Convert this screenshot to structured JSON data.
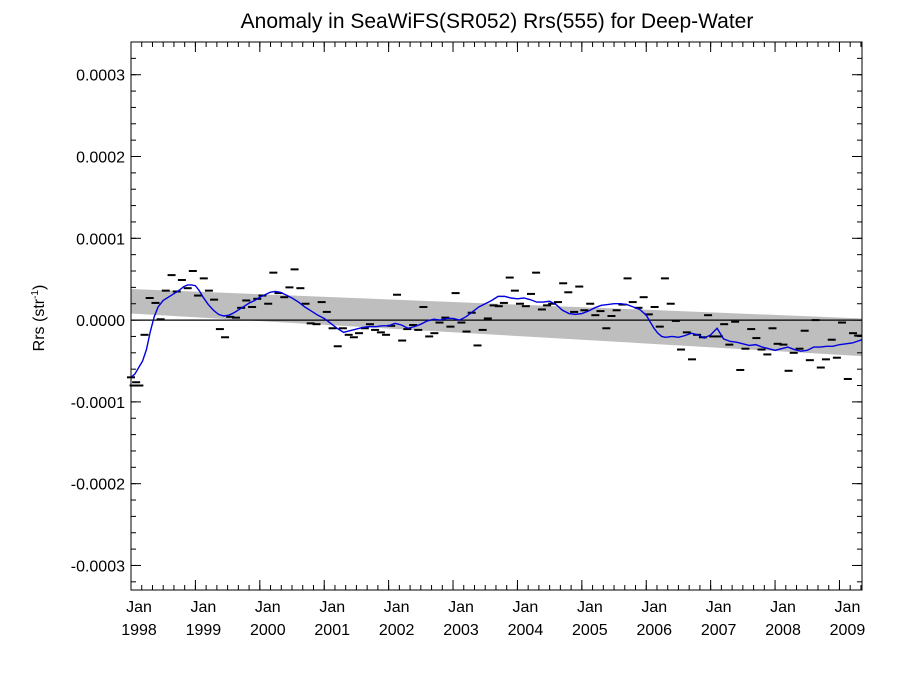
{
  "chart_data": {
    "type": "line",
    "title": "Anomaly in SeaWiFS(SR052) Rrs(555) for Deep-Water",
    "ylabel_main": "Rrs (str",
    "ylabel_sup": "-1",
    "ylabel_end": ")",
    "xlim": [
      1998.0,
      2009.35
    ],
    "ylim": [
      -0.00033,
      0.00034
    ],
    "yticks": [
      {
        "value": 0.0003,
        "label": "0.0003"
      },
      {
        "value": 0.0002,
        "label": "0.0002"
      },
      {
        "value": 0.0001,
        "label": "0.0001"
      },
      {
        "value": 0.0,
        "label": "0.0000"
      },
      {
        "value": -0.0001,
        "label": "-0.0001"
      },
      {
        "value": -0.0002,
        "label": "-0.0002"
      },
      {
        "value": -0.0003,
        "label": "-0.0003"
      }
    ],
    "xticks": [
      {
        "value": 1998,
        "month": "Jan",
        "year": "1998"
      },
      {
        "value": 1999,
        "month": "Jan",
        "year": "1999"
      },
      {
        "value": 2000,
        "month": "Jan",
        "year": "2000"
      },
      {
        "value": 2001,
        "month": "Jan",
        "year": "2001"
      },
      {
        "value": 2002,
        "month": "Jan",
        "year": "2002"
      },
      {
        "value": 2003,
        "month": "Jan",
        "year": "2003"
      },
      {
        "value": 2004,
        "month": "Jan",
        "year": "2004"
      },
      {
        "value": 2005,
        "month": "Jan",
        "year": "2005"
      },
      {
        "value": 2006,
        "month": "Jan",
        "year": "2006"
      },
      {
        "value": 2007,
        "month": "Jan",
        "year": "2007"
      },
      {
        "value": 2008,
        "month": "Jan",
        "year": "2008"
      },
      {
        "value": 2009,
        "month": "Jan",
        "year": "2009"
      }
    ],
    "zero_line": 0.0,
    "trend_band": {
      "x": [
        1998.0,
        2009.35
      ],
      "upper": [
        3.8e-05,
        2e-06
      ],
      "lower": [
        8e-06,
        -4.4e-05
      ]
    },
    "monthly_points": [
      [
        1998.0,
        -7e-05
      ],
      [
        1998.04,
        -8e-05
      ],
      [
        1998.08,
        -7.6e-05
      ],
      [
        1998.13,
        -8e-05
      ],
      [
        1998.21,
        -1.8e-05
      ],
      [
        1998.29,
        2.7e-05
      ],
      [
        1998.38,
        2.1e-05
      ],
      [
        1998.46,
        1e-06
      ],
      [
        1998.54,
        3.6e-05
      ],
      [
        1998.63,
        5.5e-05
      ],
      [
        1998.71,
        3.5e-05
      ],
      [
        1998.79,
        4.9e-05
      ],
      [
        1998.88,
        3.9e-05
      ],
      [
        1998.96,
        6e-05
      ],
      [
        1999.04,
        3e-05
      ],
      [
        1999.13,
        5.1e-05
      ],
      [
        1999.21,
        3.6e-05
      ],
      [
        1999.29,
        2.5e-05
      ],
      [
        1999.38,
        -1.1e-05
      ],
      [
        1999.46,
        -2.1e-05
      ],
      [
        1999.54,
        4e-06
      ],
      [
        1999.63,
        3e-06
      ],
      [
        1999.71,
        1.5e-05
      ],
      [
        1999.79,
        2.4e-05
      ],
      [
        1999.88,
        1.6e-05
      ],
      [
        1999.96,
        2.6e-05
      ],
      [
        2000.04,
        3e-05
      ],
      [
        2000.13,
        2e-05
      ],
      [
        2000.21,
        5.8e-05
      ],
      [
        2000.29,
        3.3e-05
      ],
      [
        2000.38,
        2.8e-05
      ],
      [
        2000.46,
        4e-05
      ],
      [
        2000.54,
        6.2e-05
      ],
      [
        2000.63,
        3.9e-05
      ],
      [
        2000.71,
        2e-05
      ],
      [
        2000.79,
        -4e-06
      ],
      [
        2000.88,
        -5e-06
      ],
      [
        2000.96,
        2.2e-05
      ],
      [
        2001.04,
        1e-05
      ],
      [
        2001.13,
        -1e-05
      ],
      [
        2001.21,
        -3.2e-05
      ],
      [
        2001.29,
        -1e-05
      ],
      [
        2001.38,
        -1.8e-05
      ],
      [
        2001.46,
        -2.1e-05
      ],
      [
        2001.54,
        -1.6e-05
      ],
      [
        2001.63,
        -1e-05
      ],
      [
        2001.71,
        -5e-06
      ],
      [
        2001.79,
        -1.2e-05
      ],
      [
        2001.88,
        -1.5e-05
      ],
      [
        2001.96,
        -1.8e-05
      ],
      [
        2002.04,
        -7e-06
      ],
      [
        2002.13,
        3.1e-05
      ],
      [
        2002.21,
        -2.5e-05
      ],
      [
        2002.29,
        -1.1e-05
      ],
      [
        2002.38,
        -6e-06
      ],
      [
        2002.46,
        -1.2e-05
      ],
      [
        2002.54,
        1.6e-05
      ],
      [
        2002.63,
        -2e-05
      ],
      [
        2002.71,
        -1.6e-05
      ],
      [
        2002.79,
        -3e-06
      ],
      [
        2002.88,
        3e-06
      ],
      [
        2002.96,
        -8e-06
      ],
      [
        2003.04,
        3.3e-05
      ],
      [
        2003.13,
        -3e-06
      ],
      [
        2003.21,
        -1.4e-05
      ],
      [
        2003.29,
        9e-06
      ],
      [
        2003.38,
        -3.1e-05
      ],
      [
        2003.46,
        -1.2e-05
      ],
      [
        2003.54,
        2e-06
      ],
      [
        2003.63,
        1.8e-05
      ],
      [
        2003.71,
        1.7e-05
      ],
      [
        2003.79,
        2.1e-05
      ],
      [
        2003.88,
        5.2e-05
      ],
      [
        2003.96,
        3.6e-05
      ],
      [
        2004.04,
        2e-05
      ],
      [
        2004.13,
        1.7e-05
      ],
      [
        2004.21,
        3.2e-05
      ],
      [
        2004.29,
        5.8e-05
      ],
      [
        2004.38,
        1.3e-05
      ],
      [
        2004.46,
        1.8e-05
      ],
      [
        2004.54,
        2e-05
      ],
      [
        2004.63,
        2.2e-05
      ],
      [
        2004.71,
        4.5e-05
      ],
      [
        2004.79,
        3.4e-05
      ],
      [
        2004.88,
        1e-05
      ],
      [
        2004.96,
        4.1e-05
      ],
      [
        2005.04,
        1.2e-05
      ],
      [
        2005.13,
        2e-05
      ],
      [
        2005.21,
        6e-06
      ],
      [
        2005.29,
        1.1e-05
      ],
      [
        2005.38,
        -1e-05
      ],
      [
        2005.46,
        5e-06
      ],
      [
        2005.54,
        1.2e-05
      ],
      [
        2005.63,
        1.9e-05
      ],
      [
        2005.71,
        5.1e-05
      ],
      [
        2005.79,
        2.2e-05
      ],
      [
        2005.88,
        1.5e-05
      ],
      [
        2005.96,
        2.8e-05
      ],
      [
        2006.04,
        7e-06
      ],
      [
        2006.13,
        1.6e-05
      ],
      [
        2006.21,
        -8e-06
      ],
      [
        2006.29,
        5.1e-05
      ],
      [
        2006.38,
        2e-05
      ],
      [
        2006.46,
        -1e-06
      ],
      [
        2006.54,
        -3.6e-05
      ],
      [
        2006.63,
        -1.5e-05
      ],
      [
        2006.71,
        -4.8e-05
      ],
      [
        2006.79,
        -1.8e-05
      ],
      [
        2006.88,
        -2.1e-05
      ],
      [
        2006.96,
        6e-06
      ],
      [
        2007.04,
        -2e-05
      ],
      [
        2007.13,
        -2e-05
      ],
      [
        2007.21,
        -5e-06
      ],
      [
        2007.29,
        -3e-05
      ],
      [
        2007.38,
        -2e-06
      ],
      [
        2007.46,
        -6.1e-05
      ],
      [
        2007.54,
        -3.5e-05
      ],
      [
        2007.63,
        -1.1e-05
      ],
      [
        2007.71,
        -2.2e-05
      ],
      [
        2007.79,
        -3.6e-05
      ],
      [
        2007.88,
        -4.2e-05
      ],
      [
        2007.96,
        -1e-05
      ],
      [
        2008.04,
        -2.9e-05
      ],
      [
        2008.13,
        -3e-05
      ],
      [
        2008.21,
        -6.2e-05
      ],
      [
        2008.29,
        -4e-05
      ],
      [
        2008.38,
        -3.5e-05
      ],
      [
        2008.46,
        -1.3e-05
      ],
      [
        2008.54,
        -4.9e-05
      ],
      [
        2008.63,
        0.0
      ],
      [
        2008.71,
        -5.8e-05
      ],
      [
        2008.79,
        -4.8e-05
      ],
      [
        2008.88,
        -2.4e-05
      ],
      [
        2008.96,
        -4.6e-05
      ],
      [
        2009.04,
        -3e-06
      ],
      [
        2009.13,
        -7.2e-05
      ],
      [
        2009.21,
        -1.6e-05
      ],
      [
        2009.29,
        -1.9e-05
      ]
    ],
    "running_mean": {
      "x": [
        1998.0,
        1998.06,
        1998.12,
        1998.18,
        1998.24,
        1998.3,
        1998.36,
        1998.42,
        1998.5,
        1998.58,
        1998.66,
        1998.74,
        1998.82,
        1998.88,
        1998.94,
        1999.0,
        1999.06,
        1999.12,
        1999.2,
        1999.28,
        1999.36,
        1999.44,
        1999.52,
        1999.6,
        1999.68,
        1999.76,
        1999.84,
        1999.92,
        2000.0,
        2000.08,
        2000.16,
        2000.24,
        2000.32,
        2000.4,
        2000.5,
        2000.6,
        2000.7,
        2000.8,
        2000.9,
        2001.0,
        2001.1,
        2001.2,
        2001.3,
        2001.4,
        2001.5,
        2001.6,
        2001.7,
        2001.8,
        2001.9,
        2002.0,
        2002.1,
        2002.2,
        2002.3,
        2002.4,
        2002.5,
        2002.6,
        2002.7,
        2002.8,
        2002.9,
        2003.0,
        2003.1,
        2003.2,
        2003.3,
        2003.4,
        2003.5,
        2003.6,
        2003.7,
        2003.8,
        2003.9,
        2004.0,
        2004.1,
        2004.2,
        2004.3,
        2004.4,
        2004.5,
        2004.6,
        2004.7,
        2004.8,
        2004.9,
        2005.0,
        2005.1,
        2005.2,
        2005.3,
        2005.4,
        2005.5,
        2005.6,
        2005.7,
        2005.8,
        2005.9,
        2006.0,
        2006.06,
        2006.12,
        2006.18,
        2006.24,
        2006.3,
        2006.4,
        2006.5,
        2006.6,
        2006.7,
        2006.8,
        2006.9,
        2007.0,
        2007.1,
        2007.2,
        2007.3,
        2007.4,
        2007.5,
        2007.6,
        2007.7,
        2007.8,
        2007.9,
        2008.0,
        2008.1,
        2008.2,
        2008.3,
        2008.4,
        2008.5,
        2008.6,
        2008.7,
        2008.8,
        2008.9,
        2009.0,
        2009.1,
        2009.2,
        2009.35
      ],
      "y": [
        -7e-05,
        -6.6e-05,
        -5.8e-05,
        -5e-05,
        -3.6e-05,
        -1.4e-05,
        4e-06,
        1.6e-05,
        2.4e-05,
        2.8e-05,
        3.2e-05,
        3.6e-05,
        4.1e-05,
        4.3e-05,
        4.3e-05,
        4.2e-05,
        3.6e-05,
        2.8e-05,
        1.9e-05,
        1.2e-05,
        7e-06,
        5e-06,
        6e-06,
        9e-06,
        1.3e-05,
        1.7e-05,
        2.1e-05,
        2.4e-05,
        2.8e-05,
        3.1e-05,
        3.4e-05,
        3.5e-05,
        3.4e-05,
        3.1e-05,
        2.7e-05,
        2.2e-05,
        1.6e-05,
        1.1e-05,
        6e-06,
        2e-06,
        -4e-06,
        -1e-05,
        -1.5e-05,
        -1.3e-05,
        -1.1e-05,
        -9e-06,
        -8e-06,
        -8e-06,
        -7e-06,
        -7e-06,
        -4e-06,
        -6e-06,
        -1e-05,
        -8e-06,
        -5e-06,
        -1e-06,
        1e-06,
        0.0,
        2e-06,
        2e-06,
        0.0,
        4e-06,
        1e-05,
        1.6e-05,
        2e-05,
        2.4e-05,
        2.9e-05,
        2.9e-05,
        2.7e-05,
        2.6e-05,
        2.7e-05,
        2.5e-05,
        2.2e-05,
        2.2e-05,
        2.3e-05,
        1.9e-05,
        1.2e-05,
        8e-06,
        7e-06,
        8e-06,
        1.1e-05,
        1.5e-05,
        1.8e-05,
        1.9e-05,
        2e-05,
        2e-05,
        1.9e-05,
        1.6e-05,
        1.3e-05,
        6e-06,
        -2e-06,
        -1e-05,
        -1.6e-05,
        -2e-05,
        -2.1e-05,
        -2e-05,
        -2.1e-05,
        -1.9e-05,
        -1.6e-05,
        -1.8e-05,
        -2.2e-05,
        -1.8e-05,
        -1e-05,
        -2.3e-05,
        -2.6e-05,
        -2.7e-05,
        -2.9e-05,
        -3.1e-05,
        -3e-05,
        -3.3e-05,
        -3.5e-05,
        -3.7e-05,
        -3.5e-05,
        -3.3e-05,
        -3.6e-05,
        -3.8e-05,
        -3.7e-05,
        -3.3e-05,
        -3.3e-05,
        -3.2e-05,
        -3.2e-05,
        -3e-05,
        -2.9e-05,
        -2.8e-05,
        -2.4e-05
      ]
    },
    "colors": {
      "mean_line": "#0000e0",
      "band_fill": "#bebebe",
      "points": "#000000",
      "axes": "#000000"
    }
  }
}
